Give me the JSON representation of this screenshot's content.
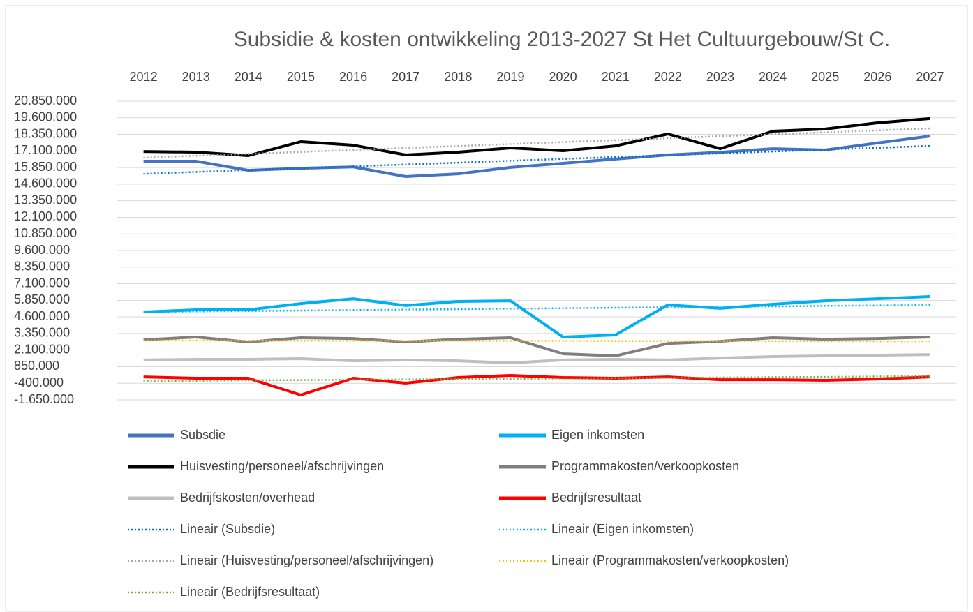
{
  "chart_data": {
    "type": "line",
    "title": "Subsidie & kosten ontwikkeling 2013-2027 St Het Cultuurgebouw/St C.",
    "categories": [
      "2012",
      "2013",
      "2014",
      "2015",
      "2016",
      "2017",
      "2018",
      "2019",
      "2020",
      "2021",
      "2022",
      "2023",
      "2024",
      "2025",
      "2026",
      "2027"
    ],
    "ylim": [
      -1650000,
      20850000
    ],
    "yticks": [
      {
        "value": -1650000,
        "label": "-1.650.000"
      },
      {
        "value": -400000,
        "label": "-400.000"
      },
      {
        "value": 850000,
        "label": "850.000"
      },
      {
        "value": 2100000,
        "label": "2.100.000"
      },
      {
        "value": 3350000,
        "label": "3.350.000"
      },
      {
        "value": 4600000,
        "label": "4.600.000"
      },
      {
        "value": 5850000,
        "label": "5.850.000"
      },
      {
        "value": 7100000,
        "label": "7.100.000"
      },
      {
        "value": 8350000,
        "label": "8.350.000"
      },
      {
        "value": 9600000,
        "label": "9.600.000"
      },
      {
        "value": 10850000,
        "label": "10.850.000"
      },
      {
        "value": 12100000,
        "label": "12.100.000"
      },
      {
        "value": 13350000,
        "label": "13.350.000"
      },
      {
        "value": 14600000,
        "label": "14.600.000"
      },
      {
        "value": 15850000,
        "label": "15.850.000"
      },
      {
        "value": 17100000,
        "label": "17.100.000"
      },
      {
        "value": 18350000,
        "label": "18.350.000"
      },
      {
        "value": 19600000,
        "label": "19.600.000"
      },
      {
        "value": 20850000,
        "label": "20.850.000"
      }
    ],
    "grid": true,
    "series": [
      {
        "name": "Subsdie",
        "color": "#4472c4",
        "style": "solid",
        "values": [
          16330000,
          16330000,
          15640000,
          15800000,
          15900000,
          15170000,
          15380000,
          15860000,
          16170000,
          16490000,
          16800000,
          17000000,
          17270000,
          17170000,
          17700000,
          18220000
        ]
      },
      {
        "name": "Eigen inkomsten",
        "color": "#00b0f0",
        "style": "solid",
        "values": [
          4970000,
          5130000,
          5130000,
          5600000,
          5970000,
          5450000,
          5760000,
          5810000,
          3080000,
          3240000,
          5500000,
          5240000,
          5550000,
          5810000,
          5970000,
          6130000
        ]
      },
      {
        "name": "Huisvesting/personeel/afschrijvingen",
        "color": "#000000",
        "style": "solid",
        "values": [
          17060000,
          17010000,
          16750000,
          17800000,
          17540000,
          16800000,
          17010000,
          17330000,
          17120000,
          17480000,
          18380000,
          17270000,
          18590000,
          18750000,
          19220000,
          19540000
        ]
      },
      {
        "name": "Programmakosten/verkoopkosten",
        "color": "#7f7f7f",
        "style": "solid",
        "values": [
          2870000,
          3080000,
          2710000,
          3030000,
          2970000,
          2710000,
          2920000,
          3030000,
          1820000,
          1660000,
          2600000,
          2760000,
          3030000,
          2920000,
          2970000,
          3080000
        ]
      },
      {
        "name": "Bedrijfskosten/overhead",
        "color": "#bfbfbf",
        "style": "solid",
        "values": [
          1350000,
          1400000,
          1400000,
          1450000,
          1290000,
          1350000,
          1290000,
          1130000,
          1350000,
          1400000,
          1350000,
          1500000,
          1610000,
          1660000,
          1710000,
          1760000
        ]
      },
      {
        "name": "Bedrijfsresultaat",
        "color": "#ff0000",
        "style": "solid",
        "values": [
          80000,
          -20000,
          -20000,
          -1280000,
          -20000,
          -390000,
          30000,
          190000,
          30000,
          -20000,
          80000,
          -130000,
          -130000,
          -180000,
          -80000,
          80000
        ]
      },
      {
        "name": "Lineair (Subsdie)",
        "color": "#0070c0",
        "style": "dotted",
        "values": [
          15380000,
          15520000,
          15660000,
          15800000,
          15940000,
          16080000,
          16220000,
          16360000,
          16500000,
          16640000,
          16780000,
          16920000,
          17060000,
          17200000,
          17340000,
          17480000
        ]
      },
      {
        "name": "Lineair (Eigen inkomsten)",
        "color": "#00b0f0",
        "style": "dotted",
        "values": [
          4970000,
          5010000,
          5040000,
          5080000,
          5110000,
          5150000,
          5180000,
          5220000,
          5250000,
          5290000,
          5320000,
          5360000,
          5390000,
          5430000,
          5460000,
          5500000
        ]
      },
      {
        "name": "Lineair (Huisvesting/personeel/afschrijvingen)",
        "color": "#a6a6a6",
        "style": "dotted",
        "values": [
          16590000,
          16740000,
          16880000,
          17030000,
          17180000,
          17330000,
          17470000,
          17620000,
          17770000,
          17910000,
          18060000,
          18210000,
          18350000,
          18500000,
          18650000,
          18800000
        ]
      },
      {
        "name": "Lineair (Programmakosten/verkoopkosten)",
        "color": "#ffc000",
        "style": "dotted",
        "values": [
          2820000,
          2820000,
          2810000,
          2810000,
          2800000,
          2800000,
          2800000,
          2790000,
          2790000,
          2780000,
          2780000,
          2780000,
          2770000,
          2770000,
          2760000,
          2760000
        ]
      },
      {
        "name": "Lineair (Bedrijfsresultaat)",
        "color": "#70ad47",
        "style": "dotted",
        "values": [
          -230000,
          -210000,
          -180000,
          -160000,
          -130000,
          -110000,
          -90000,
          -60000,
          -40000,
          -10000,
          10000,
          30000,
          60000,
          80000,
          110000,
          130000
        ]
      }
    ]
  }
}
